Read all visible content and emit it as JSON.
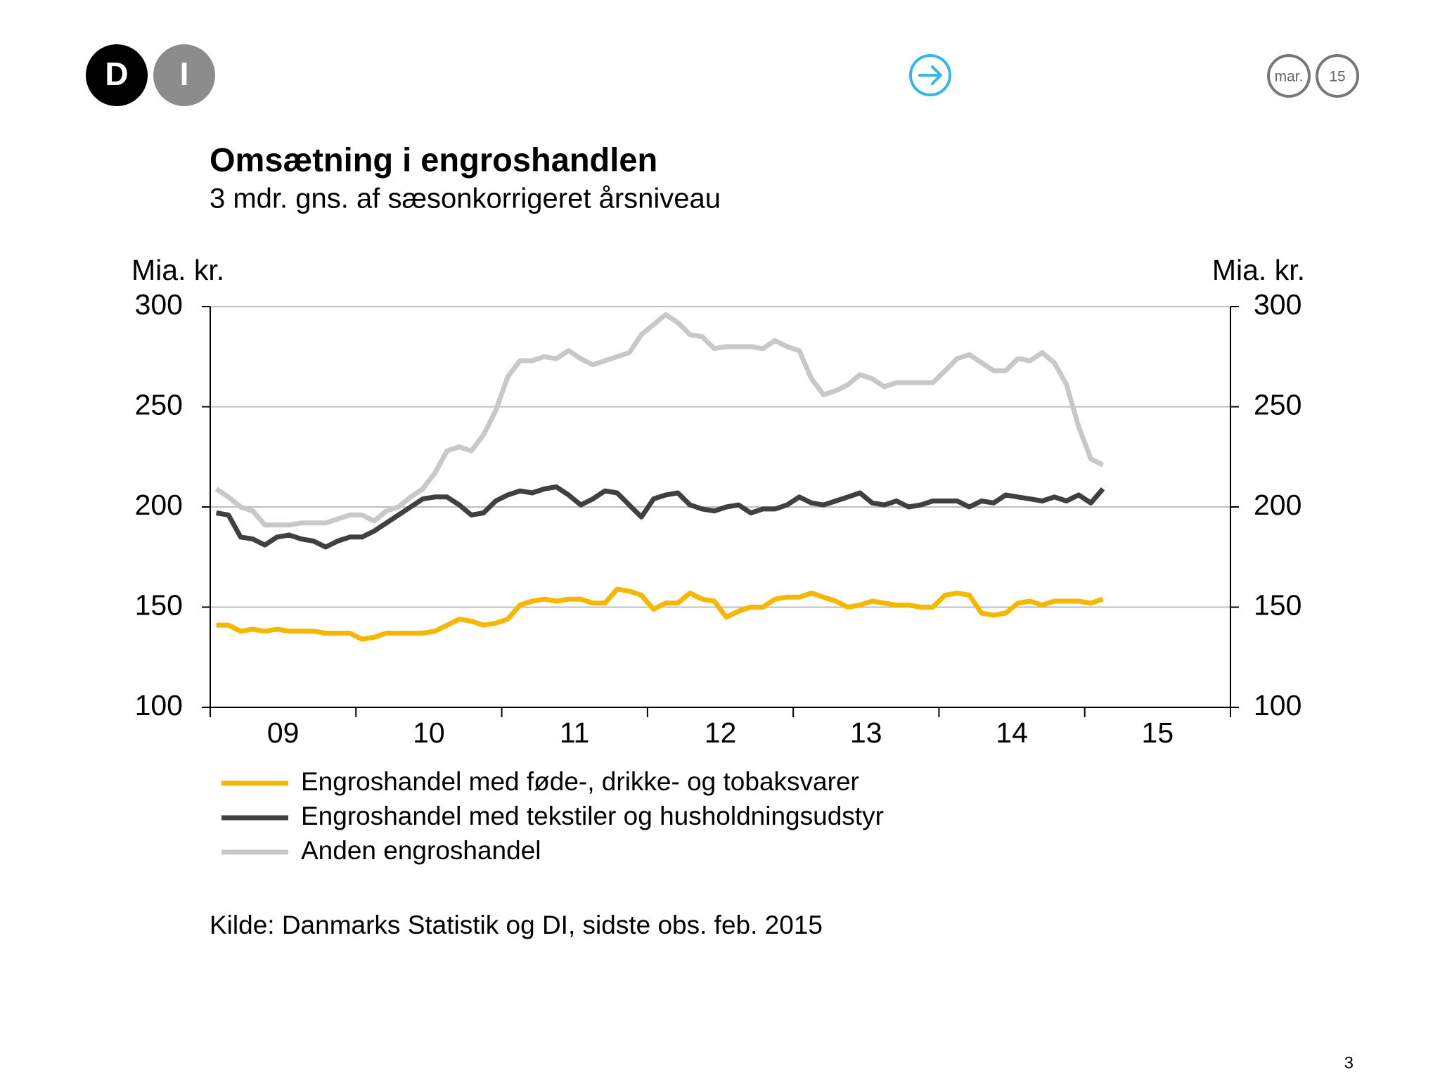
{
  "header": {
    "logo": [
      "D",
      "I"
    ],
    "date": [
      "mar.",
      "15"
    ]
  },
  "chart_data": {
    "type": "line",
    "title": "Omsætning i engroshandlen",
    "subtitle": "3 mdr. gns. af sæsonkorrigeret årsniveau",
    "y_label": "Mia. kr.",
    "y2_label": "Mia. kr.",
    "categories": [
      null,
      null,
      null,
      null,
      null,
      null,
      "09",
      null,
      null,
      null,
      null,
      null,
      null,
      null,
      null,
      null,
      null,
      null,
      "10",
      null,
      null,
      null,
      null,
      null,
      null,
      null,
      null,
      null,
      null,
      null,
      "11",
      null,
      null,
      null,
      null,
      null,
      null,
      null,
      null,
      null,
      null,
      null,
      "12",
      null,
      null,
      null,
      null,
      null,
      null,
      null,
      null,
      null,
      null,
      null,
      "13",
      null,
      null,
      null,
      null,
      null,
      null,
      null,
      null,
      null,
      null,
      null,
      "14",
      null,
      null,
      null,
      null,
      null,
      null,
      null,
      null,
      null,
      null,
      null,
      "15",
      null,
      null,
      null,
      null,
      null
    ],
    "series": [
      {
        "name": "Engroshandel med føde-, drikke- og tobaksvarer",
        "color": "#f5b800",
        "values": [
          141,
          141,
          138,
          139,
          138,
          139,
          138,
          138,
          138,
          137,
          137,
          137,
          134,
          135,
          137,
          137,
          137,
          137,
          138,
          141,
          144,
          143,
          141,
          142,
          144,
          151,
          153,
          154,
          153,
          154,
          154,
          152,
          152,
          159,
          158,
          156,
          149,
          152,
          152,
          157,
          154,
          153,
          145,
          148,
          150,
          150,
          154,
          155,
          155,
          157,
          155,
          153,
          150,
          151,
          153,
          152,
          151,
          151,
          150,
          150,
          156,
          157,
          156,
          147,
          146,
          147,
          152,
          153,
          151,
          153,
          153,
          153,
          152,
          154,
          null,
          null,
          null,
          null,
          null,
          null,
          null,
          null,
          null,
          null
        ]
      },
      {
        "name": "Engroshandel med tekstiler og husholdningsudstyr",
        "color": "#404040",
        "values": [
          197,
          196,
          185,
          184,
          181,
          185,
          186,
          184,
          183,
          180,
          183,
          185,
          185,
          188,
          192,
          196,
          200,
          204,
          205,
          205,
          201,
          196,
          197,
          203,
          206,
          208,
          207,
          209,
          210,
          206,
          201,
          204,
          208,
          207,
          201,
          195,
          204,
          206,
          207,
          201,
          199,
          198,
          200,
          201,
          197,
          199,
          199,
          201,
          205,
          202,
          201,
          203,
          205,
          207,
          202,
          201,
          203,
          200,
          201,
          203,
          203,
          203,
          200,
          203,
          202,
          206,
          205,
          204,
          203,
          205,
          203,
          206,
          202,
          209,
          null,
          null,
          null,
          null,
          null,
          null,
          null,
          null,
          null,
          null
        ]
      },
      {
        "name": "Anden engroshandel",
        "color": "#c8c8c8",
        "values": [
          209,
          205,
          200,
          198,
          191,
          191,
          191,
          192,
          192,
          192,
          194,
          196,
          196,
          193,
          198,
          200,
          205,
          209,
          217,
          228,
          230,
          228,
          236,
          248,
          265,
          273,
          273,
          275,
          274,
          278,
          274,
          271,
          273,
          275,
          277,
          286,
          291,
          296,
          292,
          286,
          285,
          279,
          280,
          280,
          280,
          279,
          283,
          280,
          278,
          264,
          256,
          258,
          261,
          266,
          264,
          260,
          262,
          262,
          262,
          262,
          268,
          274,
          276,
          272,
          268,
          268,
          274,
          273,
          277,
          272,
          261,
          240,
          224,
          221,
          null,
          null,
          null,
          null,
          null,
          null,
          null,
          null,
          null,
          null
        ]
      }
    ],
    "ylim": [
      100,
      300
    ],
    "yticks": [
      100,
      150,
      200,
      250,
      300
    ],
    "y2lim": [
      100,
      300
    ],
    "y2ticks": [
      100,
      150,
      200,
      250,
      300
    ],
    "grid": true,
    "source": "Kilde: Danmarks Statistik og DI, sidste obs. feb. 2015"
  },
  "page_number": "3"
}
